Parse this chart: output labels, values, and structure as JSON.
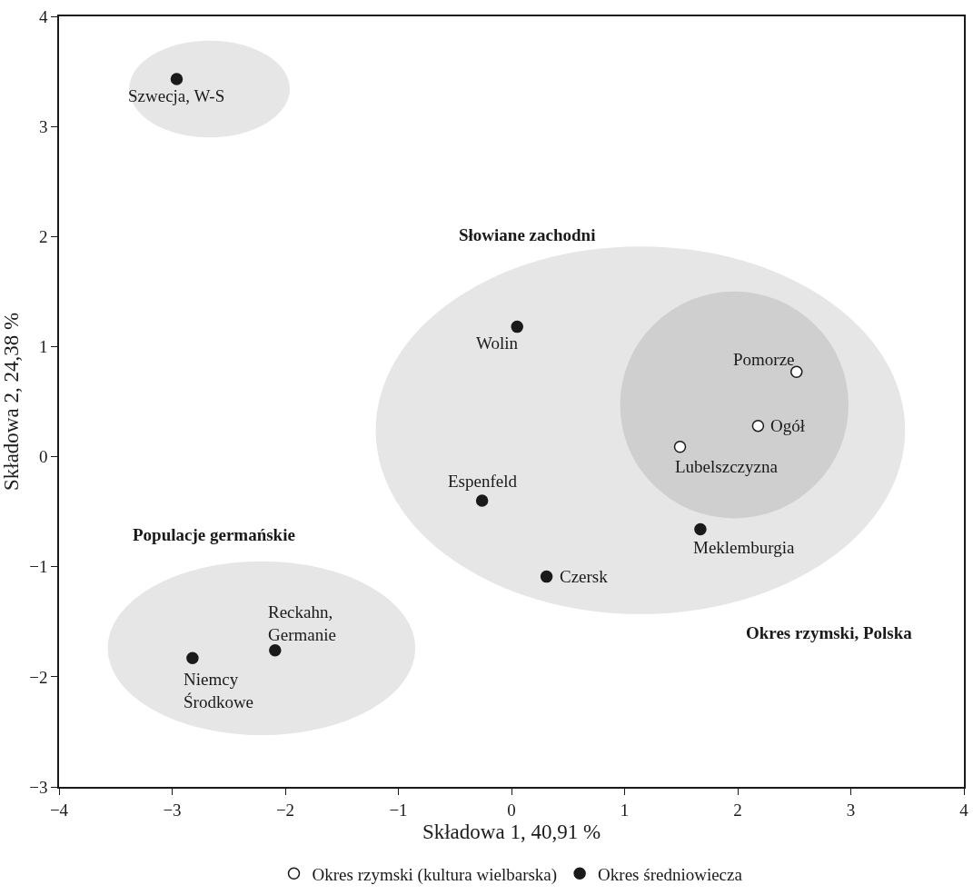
{
  "chart_data": {
    "type": "scatter",
    "xlabel": "Składowa 1, 40,91 %",
    "ylabel": "Składowa 2, 24,38 %",
    "xlim": [
      -4,
      4
    ],
    "ylim": [
      -3,
      4
    ],
    "xticks": [
      {
        "value": -4,
        "label": "−4"
      },
      {
        "value": -3,
        "label": "−3"
      },
      {
        "value": -2,
        "label": "−2"
      },
      {
        "value": -1,
        "label": "−1"
      },
      0,
      1,
      2,
      3,
      4
    ],
    "yticks": [
      {
        "value": -3,
        "label": "−3"
      },
      {
        "value": -2,
        "label": "−2"
      },
      {
        "value": -1,
        "label": "−1"
      },
      0,
      1,
      2,
      3,
      4
    ],
    "grid": false,
    "legend": "bottom",
    "marker": "circle",
    "series": [
      {
        "name": "Okres rzymski (kultura wielbarska)",
        "color": "#ffffff",
        "x": [
          2.52,
          2.18,
          1.49
        ],
        "values": [
          0.77,
          0.28,
          0.09
        ]
      },
      {
        "name": "Okres średniowiecza",
        "color": "#1a1a1a",
        "x": [
          -2.96,
          0.05,
          -0.26,
          1.67,
          0.31,
          -2.09,
          -2.82
        ],
        "values": [
          3.43,
          1.18,
          -0.4,
          -0.66,
          -1.09,
          -1.76,
          -1.83
        ]
      }
    ],
    "annotations": [
      {
        "text": "Szwecja, W-S",
        "x": -2.96,
        "y": 3.43
      },
      {
        "text": "Wolin",
        "x": 0.05,
        "y": 1.18
      },
      {
        "text": "Pomorze",
        "x": 2.52,
        "y": 0.77
      },
      {
        "text": "Ogół",
        "x": 2.18,
        "y": 0.28
      },
      {
        "text": "Lubelszczyzna",
        "x": 1.49,
        "y": 0.09
      },
      {
        "text": "Espenfeld",
        "x": -0.26,
        "y": -0.4
      },
      {
        "text": "Meklemburgia",
        "x": 1.67,
        "y": -0.66
      },
      {
        "text": "Czersk",
        "x": 0.31,
        "y": -1.09
      },
      {
        "text": "Reckahn,\nGermanie",
        "x": -2.09,
        "y": -1.76
      },
      {
        "text": "Niemcy\nŚrodkowe",
        "x": -2.82,
        "y": -1.83
      },
      "Słowiane zachodni",
      "Populacje germańskie",
      "Okres rzymski, Polska"
    ]
  }
}
